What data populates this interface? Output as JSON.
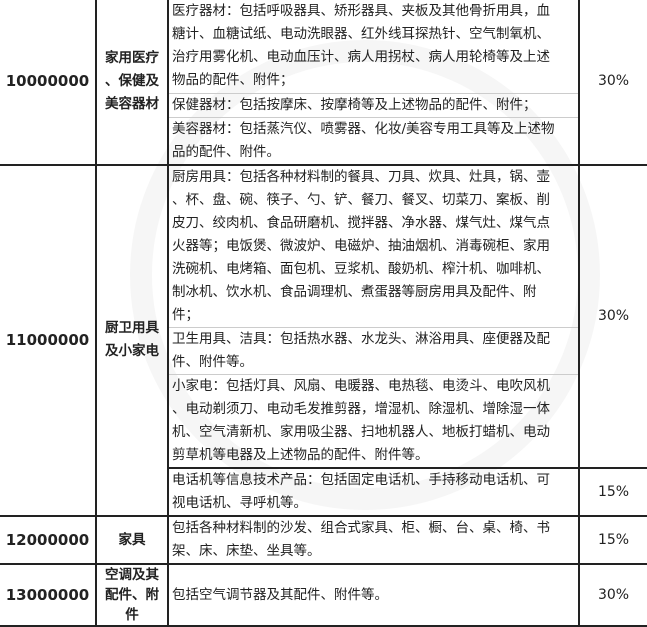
{
  "rows": [
    {
      "code": "10000000",
      "name": [
        "家用医疗",
        "、保健及",
        "美容器材"
      ],
      "blocks": [
        [
          "医疗器材：包括呼吸器具、矫形器具、夹板及其他骨折用具，血",
          "糖计、血糖试纸、电动洗眼器、红外线耳探热针、空气制氧机、",
          "治疗用雾化机、电动血压计、病人用拐杖、病人用轮椅等及上述",
          "物品的配件、附件；"
        ],
        [
          "保健器材：包括按摩床、按摩椅等及上述物品的配件、附件；"
        ],
        [
          "美容器材：包括蒸汽仪、喷雾器、化妆/美容专用工具等及上述物",
          "品的配件、附件。"
        ]
      ],
      "rate": "30%"
    },
    {
      "code": "11000000",
      "name": [
        "厨卫用具",
        "及小家电"
      ],
      "blocks": [
        [
          "厨房用具：包括各种材料制的餐具、刀具、炊具、灶具，锅、壶",
          "、杯、盘、碗、筷子、勺、铲、餐刀、餐叉、切菜刀、案板、削",
          "皮刀、绞肉机、食品研磨机、搅拌器、净水器、煤气灶、煤气点",
          "火器等；电饭煲、微波炉、电磁炉、抽油烟机、消毒碗柜、家用",
          "洗碗机、电烤箱、面包机、豆浆机、酸奶机、榨汁机、咖啡机、",
          "制冰机、饮水机、食品调理机、煮蛋器等厨房用具及配件、附",
          "件；"
        ],
        [
          "卫生用具、洁具：包括热水器、水龙头、淋浴用具、座便器及配",
          "件、附件等。"
        ],
        [
          "小家电：包括灯具、风扇、电暖器、电热毯、电烫斗、电吹风机",
          "、电动剃须刀、电动毛发推剪器，增湿机、除湿机、增除湿一体",
          "机、空气清新机、家用吸尘器、扫地机器人、地板打蜡机、电动",
          "剪草机等电器及上述物品的配件、附件等。"
        ]
      ],
      "rate": "30%",
      "extra": {
        "lines": [
          "电话机等信息技术产品：包括固定电话机、手持移动电话机、可",
          "视电话机、寻呼机等。"
        ],
        "rate": "15%"
      }
    },
    {
      "code": "12000000",
      "name": [
        "家具"
      ],
      "lines": [
        "包括各种材料制的沙发、组合式家具、柜、橱、台、桌、椅、书",
        "架、床、床垫、坐具等。"
      ],
      "rate": "15%"
    },
    {
      "code": "13000000",
      "name": [
        "空调及其",
        "配件、附",
        "件"
      ],
      "lines": [
        "包括空气调节器及其配件、附件等。"
      ],
      "rate": "30%"
    }
  ]
}
